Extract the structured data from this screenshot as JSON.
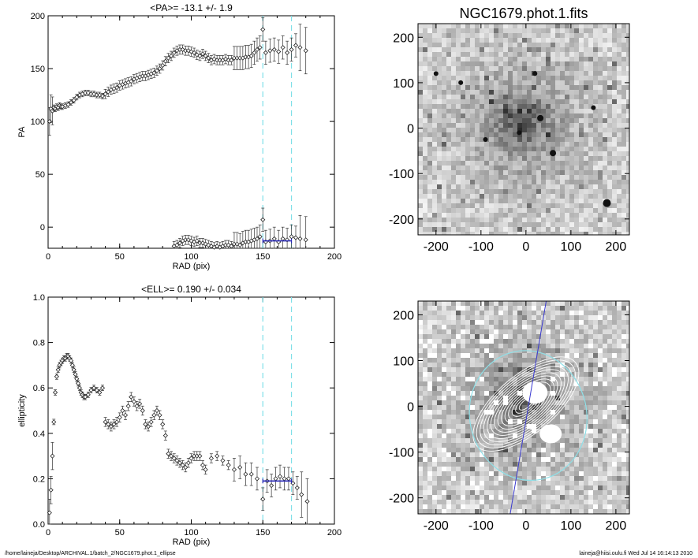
{
  "chart_data": [
    {
      "type": "scatter",
      "title": "<PA>= -13.1 +/-   1.9",
      "xlabel": "RAD (pix)",
      "ylabel": "PA",
      "xlim": [
        0,
        200
      ],
      "ylim": [
        -20,
        200
      ],
      "xticks": [
        0,
        50,
        100,
        150,
        200
      ],
      "yticks": [
        0,
        50,
        100,
        150,
        200
      ],
      "ytick_labels": [
        "0",
        "50",
        "100",
        "150",
        "200"
      ],
      "vlines": [
        150,
        170
      ],
      "mean_segment": {
        "x": [
          150,
          170
        ],
        "y": -13
      },
      "series": [
        {
          "values": [
            [
              1,
              100
            ],
            [
              2,
              112
            ],
            [
              3,
              110
            ],
            [
              4,
              113
            ],
            [
              5,
              112
            ],
            [
              6,
              114
            ],
            [
              7,
              113
            ],
            [
              8,
              115
            ],
            [
              9,
              114
            ],
            [
              10,
              114
            ],
            [
              12,
              115
            ],
            [
              14,
              116
            ],
            [
              16,
              118
            ],
            [
              18,
              120
            ],
            [
              20,
              123
            ],
            [
              22,
              125
            ],
            [
              24,
              126
            ],
            [
              26,
              127
            ],
            [
              28,
              127
            ],
            [
              30,
              126
            ],
            [
              32,
              126
            ],
            [
              34,
              125
            ],
            [
              36,
              125
            ],
            [
              38,
              124
            ],
            [
              40,
              126
            ],
            [
              42,
              128
            ],
            [
              44,
              130
            ],
            [
              46,
              131
            ],
            [
              48,
              132
            ],
            [
              50,
              134
            ],
            [
              52,
              135
            ],
            [
              54,
              136
            ],
            [
              56,
              137
            ],
            [
              58,
              138
            ],
            [
              60,
              140
            ],
            [
              62,
              141
            ],
            [
              64,
              142
            ],
            [
              66,
              143
            ],
            [
              68,
              143
            ],
            [
              70,
              144
            ],
            [
              72,
              145
            ],
            [
              74,
              146
            ],
            [
              76,
              148
            ],
            [
              78,
              150
            ],
            [
              80,
              153
            ],
            [
              82,
              157
            ],
            [
              84,
              160
            ],
            [
              86,
              162
            ],
            [
              88,
              165
            ],
            [
              90,
              167
            ],
            [
              92,
              168
            ],
            [
              94,
              168
            ],
            [
              96,
              167
            ],
            [
              98,
              167
            ],
            [
              100,
              166
            ],
            [
              102,
              165
            ],
            [
              104,
              163
            ],
            [
              106,
              162
            ],
            [
              108,
              164
            ],
            [
              110,
              162
            ],
            [
              112,
              160
            ],
            [
              114,
              158
            ],
            [
              116,
              159
            ],
            [
              118,
              158
            ],
            [
              120,
              158
            ],
            [
              122,
              158
            ],
            [
              124,
              159
            ],
            [
              126,
              158
            ],
            [
              128,
              158
            ],
            [
              130,
              160
            ],
            [
              132,
              160
            ],
            [
              134,
              160
            ],
            [
              136,
              160
            ],
            [
              138,
              161
            ],
            [
              140,
              161
            ],
            [
              142,
              162
            ],
            [
              144,
              165
            ],
            [
              146,
              168
            ],
            [
              148,
              170
            ],
            [
              150,
              187
            ],
            [
              152,
              165
            ],
            [
              155,
              167
            ],
            [
              158,
              168
            ],
            [
              161,
              166
            ],
            [
              164,
              170
            ],
            [
              167,
              165
            ],
            [
              170,
              168
            ],
            [
              173,
              172
            ],
            [
              176,
              170
            ],
            [
              180,
              167
            ]
          ]
        },
        {
          "values": [
            [
              88,
              -18
            ],
            [
              90,
              -17
            ],
            [
              92,
              -15
            ],
            [
              94,
              -13
            ],
            [
              96,
              -12
            ],
            [
              98,
              -12
            ],
            [
              100,
              -13
            ],
            [
              102,
              -14
            ],
            [
              104,
              -13
            ],
            [
              106,
              -15
            ],
            [
              108,
              -15
            ],
            [
              110,
              -16
            ],
            [
              112,
              -17
            ],
            [
              114,
              -18
            ],
            [
              116,
              -19
            ],
            [
              118,
              -18
            ],
            [
              120,
              -19
            ],
            [
              122,
              -18
            ],
            [
              124,
              -17
            ],
            [
              126,
              -17
            ],
            [
              128,
              -18
            ],
            [
              130,
              -16
            ],
            [
              132,
              -16
            ],
            [
              134,
              -17
            ],
            [
              136,
              -15
            ],
            [
              138,
              -14
            ],
            [
              140,
              -14
            ],
            [
              142,
              -13
            ],
            [
              144,
              -12
            ],
            [
              146,
              -11
            ],
            [
              148,
              -9
            ],
            [
              150,
              7
            ],
            [
              152,
              -14
            ],
            [
              155,
              -13
            ],
            [
              158,
              -11
            ],
            [
              161,
              -14
            ],
            [
              164,
              -11
            ],
            [
              167,
              -12
            ],
            [
              170,
              -9
            ],
            [
              173,
              -10
            ],
            [
              176,
              -11
            ],
            [
              180,
              -12
            ]
          ]
        }
      ]
    },
    {
      "type": "scatter",
      "title": "<ELL>= 0.190 +/-  0.034",
      "xlabel": "RAD (pix)",
      "ylabel": "ellipticity",
      "xlim": [
        0,
        200
      ],
      "ylim": [
        0,
        1
      ],
      "xticks": [
        0,
        50,
        100,
        150,
        200
      ],
      "yticks": [
        0.0,
        0.2,
        0.4,
        0.6,
        0.8,
        1.0
      ],
      "ytick_labels": [
        "0.0",
        "0.2",
        "0.4",
        "0.6",
        "0.8",
        "1.0"
      ],
      "vlines": [
        150,
        170
      ],
      "mean_segment": {
        "x": [
          150,
          170
        ],
        "y": 0.19
      },
      "series": [
        {
          "values": [
            [
              1,
              0.05
            ],
            [
              2,
              0.15
            ],
            [
              3,
              0.3
            ],
            [
              4,
              0.45
            ],
            [
              5,
              0.58
            ],
            [
              6,
              0.65
            ],
            [
              7,
              0.68
            ],
            [
              8,
              0.7
            ],
            [
              9,
              0.71
            ],
            [
              10,
              0.72
            ],
            [
              11,
              0.73
            ],
            [
              12,
              0.73
            ],
            [
              13,
              0.74
            ],
            [
              14,
              0.74
            ],
            [
              15,
              0.73
            ],
            [
              16,
              0.72
            ],
            [
              17,
              0.7
            ],
            [
              18,
              0.68
            ],
            [
              19,
              0.66
            ],
            [
              20,
              0.64
            ],
            [
              21,
              0.62
            ],
            [
              22,
              0.6
            ],
            [
              23,
              0.58
            ],
            [
              24,
              0.57
            ],
            [
              25,
              0.56
            ],
            [
              26,
              0.56
            ],
            [
              28,
              0.57
            ],
            [
              30,
              0.59
            ],
            [
              32,
              0.6
            ],
            [
              34,
              0.59
            ],
            [
              36,
              0.58
            ],
            [
              38,
              0.6
            ],
            [
              40,
              0.45
            ],
            [
              42,
              0.44
            ],
            [
              44,
              0.43
            ],
            [
              46,
              0.44
            ],
            [
              48,
              0.45
            ],
            [
              50,
              0.47
            ],
            [
              52,
              0.5
            ],
            [
              54,
              0.48
            ],
            [
              56,
              0.52
            ],
            [
              58,
              0.56
            ],
            [
              60,
              0.54
            ],
            [
              62,
              0.52
            ],
            [
              64,
              0.53
            ],
            [
              66,
              0.5
            ],
            [
              68,
              0.44
            ],
            [
              70,
              0.43
            ],
            [
              72,
              0.45
            ],
            [
              74,
              0.48
            ],
            [
              76,
              0.5
            ],
            [
              78,
              0.48
            ],
            [
              80,
              0.44
            ],
            [
              82,
              0.39
            ],
            [
              84,
              0.31
            ],
            [
              86,
              0.3
            ],
            [
              88,
              0.29
            ],
            [
              90,
              0.28
            ],
            [
              92,
              0.27
            ],
            [
              94,
              0.26
            ],
            [
              96,
              0.25
            ],
            [
              98,
              0.27
            ],
            [
              100,
              0.29
            ],
            [
              102,
              0.3
            ],
            [
              104,
              0.3
            ],
            [
              106,
              0.3
            ],
            [
              108,
              0.26
            ],
            [
              110,
              0.24
            ],
            [
              114,
              0.29
            ],
            [
              118,
              0.3
            ],
            [
              122,
              0.28
            ],
            [
              126,
              0.26
            ],
            [
              130,
              0.24
            ],
            [
              134,
              0.25
            ],
            [
              138,
              0.22
            ],
            [
              142,
              0.22
            ],
            [
              146,
              0.2
            ],
            [
              150,
              0.11
            ],
            [
              153,
              0.19
            ],
            [
              156,
              0.17
            ],
            [
              159,
              0.2
            ],
            [
              162,
              0.21
            ],
            [
              165,
              0.2
            ],
            [
              168,
              0.2
            ],
            [
              171,
              0.18
            ],
            [
              174,
              0.16
            ],
            [
              177,
              0.13
            ],
            [
              181,
              0.1
            ]
          ]
        }
      ]
    },
    {
      "type": "heatmap",
      "title": "NGC1679.phot.1.fits",
      "xlim": [
        -240,
        230
      ],
      "ylim": [
        -235,
        230
      ],
      "xticks": [
        -200,
        -100,
        0,
        100,
        200
      ],
      "yticks": [
        -200,
        -100,
        0,
        100,
        200
      ],
      "xtick_labels": [
        "-200",
        "-100",
        "0",
        "100",
        "200"
      ],
      "ytick_labels": [
        "-200",
        "-100",
        "0",
        "100",
        "200"
      ]
    },
    {
      "type": "heatmap",
      "xlim": [
        -240,
        230
      ],
      "ylim": [
        -235,
        230
      ],
      "xticks": [
        -200,
        -100,
        0,
        100,
        200
      ],
      "yticks": [
        -200,
        -100,
        0,
        100,
        200
      ],
      "xtick_labels": [
        "-200",
        "-100",
        "0",
        "100",
        "200"
      ],
      "ytick_labels": [
        "-200",
        "-100",
        "0",
        "100",
        "200"
      ],
      "colors": {
        "circle": "#8ee0e8",
        "line": "#3a3ad0"
      }
    }
  ],
  "footer": {
    "path": "/home/laineja/Desktop/ARCHIVAL.1/batch_2/NGC1679.phot.1_ellipse",
    "stamp": "laineja@hiisi.oulu.fi  Wed Jul 14 16:14:13 2010"
  },
  "colors": {
    "dashed": "#7fe0e8",
    "mean": "#2a2ab8"
  }
}
